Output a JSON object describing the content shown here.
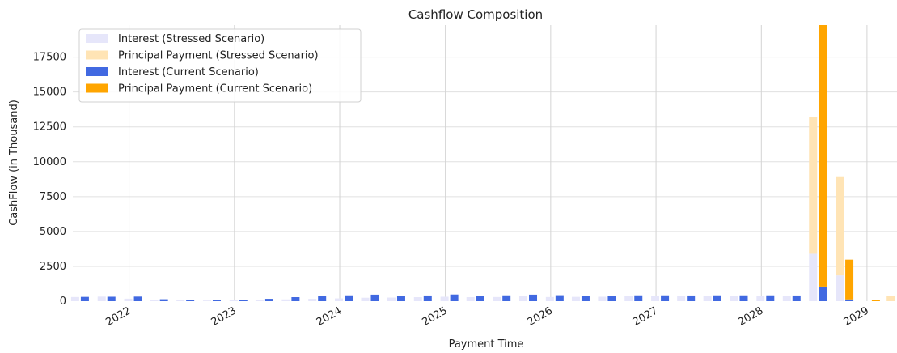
{
  "chart_data": {
    "type": "bar",
    "title": "Cashflow Composition",
    "xlabel": "Payment Time",
    "ylabel": "CashFlow (in Thousand)",
    "ylim": [
      0,
      19800
    ],
    "yticks": [
      0,
      2500,
      5000,
      7500,
      10000,
      12500,
      15000,
      17500
    ],
    "ytick_labels": [
      "0",
      "2500",
      "5000",
      "7500",
      "10000",
      "12500",
      "15000",
      "17500"
    ],
    "xlim": [
      "2021-06-20",
      "2029-04-15"
    ],
    "xticks": [
      "2022-01-01",
      "2023-01-01",
      "2024-01-01",
      "2025-01-01",
      "2026-01-01",
      "2027-01-01",
      "2028-01-01",
      "2029-01-01"
    ],
    "xtick_labels": [
      "2022",
      "2023",
      "2024",
      "2025",
      "2026",
      "2027",
      "2028",
      "2029"
    ],
    "grid": true,
    "stacked": true,
    "legend_position": "top-left",
    "series": [
      {
        "name": "Interest (Stressed Scenario)",
        "scenario": "stressed",
        "component": "interest",
        "color": "#e6e6fa"
      },
      {
        "name": "Principal Payment (Stressed Scenario)",
        "scenario": "stressed",
        "component": "principal",
        "color": "#ffe4b5"
      },
      {
        "name": "Interest (Current Scenario)",
        "scenario": "current",
        "component": "interest",
        "color": "#4169e1"
      },
      {
        "name": "Principal Payment (Current Scenario)",
        "scenario": "current",
        "component": "principal",
        "color": "#ffa500"
      }
    ],
    "periods": [
      {
        "date": "2021-07-15",
        "stressed_interest": 300,
        "stressed_principal": 0,
        "current_interest": 310,
        "current_principal": 0
      },
      {
        "date": "2021-10-15",
        "stressed_interest": 330,
        "stressed_principal": 0,
        "current_interest": 320,
        "current_principal": 0
      },
      {
        "date": "2022-01-15",
        "stressed_interest": 180,
        "stressed_principal": 0,
        "current_interest": 330,
        "current_principal": 0
      },
      {
        "date": "2022-04-15",
        "stressed_interest": 80,
        "stressed_principal": 0,
        "current_interest": 140,
        "current_principal": 0
      },
      {
        "date": "2022-07-15",
        "stressed_interest": 60,
        "stressed_principal": 0,
        "current_interest": 90,
        "current_principal": 0
      },
      {
        "date": "2022-10-15",
        "stressed_interest": 50,
        "stressed_principal": 0,
        "current_interest": 80,
        "current_principal": 0
      },
      {
        "date": "2023-01-15",
        "stressed_interest": 60,
        "stressed_principal": 0,
        "current_interest": 110,
        "current_principal": 0
      },
      {
        "date": "2023-04-15",
        "stressed_interest": 90,
        "stressed_principal": 0,
        "current_interest": 170,
        "current_principal": 0
      },
      {
        "date": "2023-07-15",
        "stressed_interest": 130,
        "stressed_principal": 0,
        "current_interest": 290,
        "current_principal": 0
      },
      {
        "date": "2023-10-15",
        "stressed_interest": 170,
        "stressed_principal": 0,
        "current_interest": 400,
        "current_principal": 0
      },
      {
        "date": "2024-01-15",
        "stressed_interest": 200,
        "stressed_principal": 0,
        "current_interest": 420,
        "current_principal": 0
      },
      {
        "date": "2024-04-15",
        "stressed_interest": 250,
        "stressed_principal": 0,
        "current_interest": 470,
        "current_principal": 0
      },
      {
        "date": "2024-07-15",
        "stressed_interest": 260,
        "stressed_principal": 0,
        "current_interest": 380,
        "current_principal": 0
      },
      {
        "date": "2024-10-15",
        "stressed_interest": 290,
        "stressed_principal": 0,
        "current_interest": 410,
        "current_principal": 0
      },
      {
        "date": "2025-01-15",
        "stressed_interest": 320,
        "stressed_principal": 0,
        "current_interest": 480,
        "current_principal": 0
      },
      {
        "date": "2025-04-15",
        "stressed_interest": 290,
        "stressed_principal": 0,
        "current_interest": 360,
        "current_principal": 0
      },
      {
        "date": "2025-07-15",
        "stressed_interest": 300,
        "stressed_principal": 0,
        "current_interest": 420,
        "current_principal": 0
      },
      {
        "date": "2025-10-15",
        "stressed_interest": 400,
        "stressed_principal": 0,
        "current_interest": 470,
        "current_principal": 0
      },
      {
        "date": "2026-01-15",
        "stressed_interest": 300,
        "stressed_principal": 0,
        "current_interest": 430,
        "current_principal": 0
      },
      {
        "date": "2026-04-15",
        "stressed_interest": 310,
        "stressed_principal": 0,
        "current_interest": 360,
        "current_principal": 0
      },
      {
        "date": "2026-07-15",
        "stressed_interest": 320,
        "stressed_principal": 0,
        "current_interest": 360,
        "current_principal": 0
      },
      {
        "date": "2026-10-15",
        "stressed_interest": 360,
        "stressed_principal": 0,
        "current_interest": 420,
        "current_principal": 0
      },
      {
        "date": "2027-01-15",
        "stressed_interest": 380,
        "stressed_principal": 0,
        "current_interest": 420,
        "current_principal": 0
      },
      {
        "date": "2027-04-15",
        "stressed_interest": 360,
        "stressed_principal": 0,
        "current_interest": 410,
        "current_principal": 0
      },
      {
        "date": "2027-07-15",
        "stressed_interest": 390,
        "stressed_principal": 0,
        "current_interest": 420,
        "current_principal": 0
      },
      {
        "date": "2027-10-15",
        "stressed_interest": 380,
        "stressed_principal": 0,
        "current_interest": 420,
        "current_principal": 0
      },
      {
        "date": "2028-01-15",
        "stressed_interest": 360,
        "stressed_principal": 0,
        "current_interest": 420,
        "current_principal": 0
      },
      {
        "date": "2028-04-15",
        "stressed_interest": 350,
        "stressed_principal": 0,
        "current_interest": 410,
        "current_principal": 0
      },
      {
        "date": "2028-07-15",
        "stressed_interest": 3400,
        "stressed_principal": 9800,
        "current_interest": 1050,
        "current_principal": 18750
      },
      {
        "date": "2028-10-15",
        "stressed_interest": 1850,
        "stressed_principal": 7050,
        "current_interest": 130,
        "current_principal": 2850
      },
      {
        "date": "2029-01-15",
        "stressed_interest": 0,
        "stressed_principal": 0,
        "current_interest": 0,
        "current_principal": 60
      },
      {
        "date": "2029-04-10",
        "stressed_interest": 0,
        "stressed_principal": 380,
        "current_interest": 0,
        "current_principal": 0
      }
    ]
  }
}
